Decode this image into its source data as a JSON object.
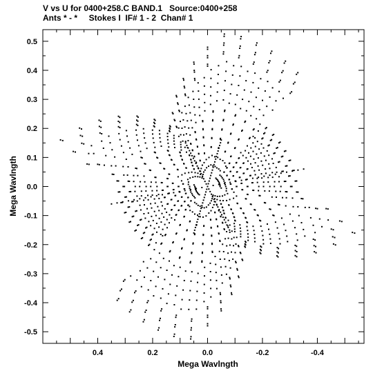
{
  "header": {
    "title_line1": "V vs U for 0400+258.C BAND.1   Source:0400+258",
    "title_line2": "Ants * - *     Stokes I  IF# 1 - 2  Chan# 1"
  },
  "chart_data": {
    "type": "scatter",
    "xlabel": "Mega Wavlngth",
    "ylabel": "Mega Wavlngth",
    "xlim": [
      0.6,
      -0.57
    ],
    "ylim": [
      -0.54,
      0.54
    ],
    "x_ticks": [
      0.4,
      0.2,
      0,
      -0.2,
      -0.4
    ],
    "x_tick_labels": [
      "0.4",
      "0.2",
      "0.0",
      "-0.2",
      "-0.4"
    ],
    "y_ticks": [
      0.5,
      0.4,
      0.3,
      0.2,
      0.1,
      0,
      -0.1,
      -0.2,
      -0.3,
      -0.4,
      -0.5
    ],
    "y_tick_labels": [
      "0.5",
      "0.4",
      "0.3",
      "0.2",
      "0.1",
      "0.0",
      "-0.1",
      "-0.2",
      "-0.3",
      "-0.4",
      "-0.5"
    ],
    "grid": false,
    "marker_color": "#000000",
    "star_tips": [
      [
        -0.07,
        0.53
      ],
      [
        -0.35,
        0.37
      ],
      [
        -0.55,
        -0.15
      ],
      [
        0.07,
        -0.53
      ],
      [
        0.35,
        -0.37
      ],
      [
        0.55,
        0.15
      ]
    ],
    "star_notches": [
      [
        -0.205,
        0.21
      ],
      [
        -0.33,
        -0.03
      ],
      [
        -0.13,
        -0.205
      ],
      [
        0.205,
        -0.21
      ],
      [
        0.33,
        0.03
      ],
      [
        0.13,
        0.205
      ]
    ],
    "radial_lines": [
      {
        "from": [
          0.08,
          0.15
        ],
        "to": [
          -0.08,
          -0.15
        ]
      },
      {
        "from": [
          -0.05,
          0.16
        ],
        "to": [
          0.05,
          -0.16
        ]
      },
      {
        "from": [
          0.35,
          -0.06
        ],
        "to": [
          -0.35,
          0.06
        ]
      }
    ],
    "rings": 15,
    "points_per_ring": 54
  }
}
